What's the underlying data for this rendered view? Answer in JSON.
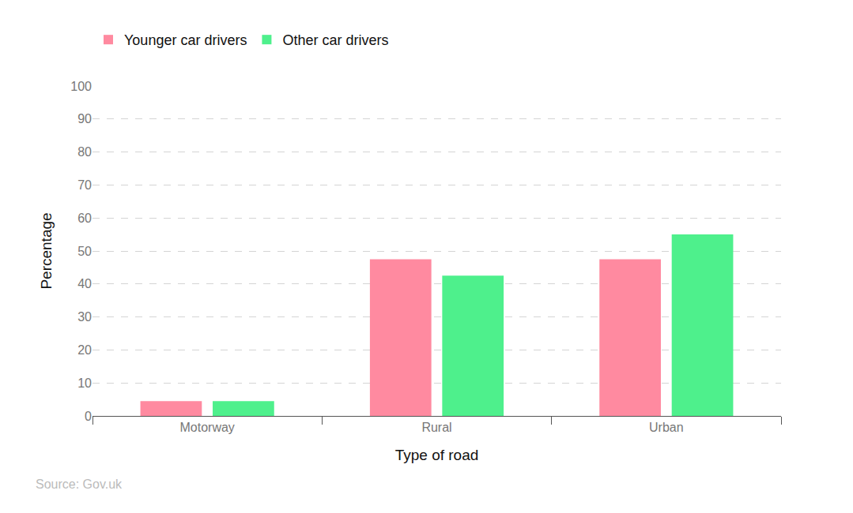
{
  "chart_data": {
    "type": "bar",
    "x_label": "Type of road",
    "y_label": "Percentage",
    "source": "Source: Gov.uk",
    "categories": [
      "Motorway",
      "Rural",
      "Urban"
    ],
    "series": [
      {
        "name": "Younger car drivers",
        "color": "#ff8aa0",
        "values": [
          4.5,
          47.5,
          47.5
        ]
      },
      {
        "name": "Other car drivers",
        "color": "#4ef08c",
        "values": [
          4.5,
          42.5,
          55
        ]
      }
    ],
    "ylim": [
      0,
      100
    ],
    "yticks": [
      0,
      10,
      20,
      30,
      40,
      50,
      60,
      70,
      80,
      90,
      100
    ],
    "grid": true,
    "legend": "top left"
  }
}
